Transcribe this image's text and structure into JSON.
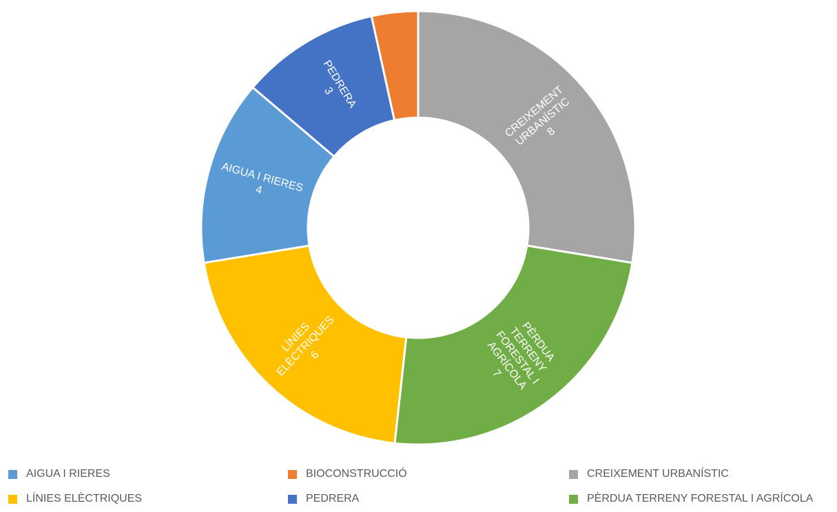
{
  "chart_data": {
    "type": "pie",
    "style": "doughnut",
    "slices": [
      {
        "name": "CREIXEMENT URBANÍSTIC",
        "label_lines": [
          "CREIXEMENT",
          "URBANÍSTIC",
          "8"
        ],
        "value": 8,
        "color": "#A5A5A5"
      },
      {
        "name": "PÈRDUA TERRENY FORESTAL I AGRÍCOLA",
        "label_lines": [
          "PÈRDUA",
          "TERRENY",
          "FORESTAL I",
          "AGRÍCOLA",
          "7"
        ],
        "value": 7,
        "color": "#70AD47"
      },
      {
        "name": "LÍNIES ELÈCTRIQUES",
        "label_lines": [
          "LÍNIES",
          "ELÈCTRIQUES",
          "6"
        ],
        "value": 6,
        "color": "#FFC000"
      },
      {
        "name": "AIGUA I RIERES",
        "label_lines": [
          "AIGUA I RIERES",
          "4"
        ],
        "value": 4,
        "color": "#5B9BD5"
      },
      {
        "name": "PEDRERA",
        "label_lines": [
          "PEDRERA",
          "3"
        ],
        "value": 3,
        "color": "#4472C4"
      },
      {
        "name": "BIOCONSTRUCCIÓ",
        "label_lines": [],
        "value": 1,
        "color": "#ED7D31"
      }
    ],
    "legend_position": "bottom",
    "legend": [
      {
        "label": "AIGUA I RIERES",
        "color": "#5B9BD5"
      },
      {
        "label": "BIOCONSTRUCCIÓ",
        "color": "#ED7D31"
      },
      {
        "label": "CREIXEMENT URBANÍSTIC",
        "color": "#A5A5A5"
      },
      {
        "label": "LÍNIES ELÈCTRIQUES",
        "color": "#FFC000"
      },
      {
        "label": "PEDRERA",
        "color": "#4472C4"
      },
      {
        "label": "PÈRDUA TERRENY FORESTAL I AGRÍCOLA",
        "color": "#70AD47"
      }
    ]
  }
}
